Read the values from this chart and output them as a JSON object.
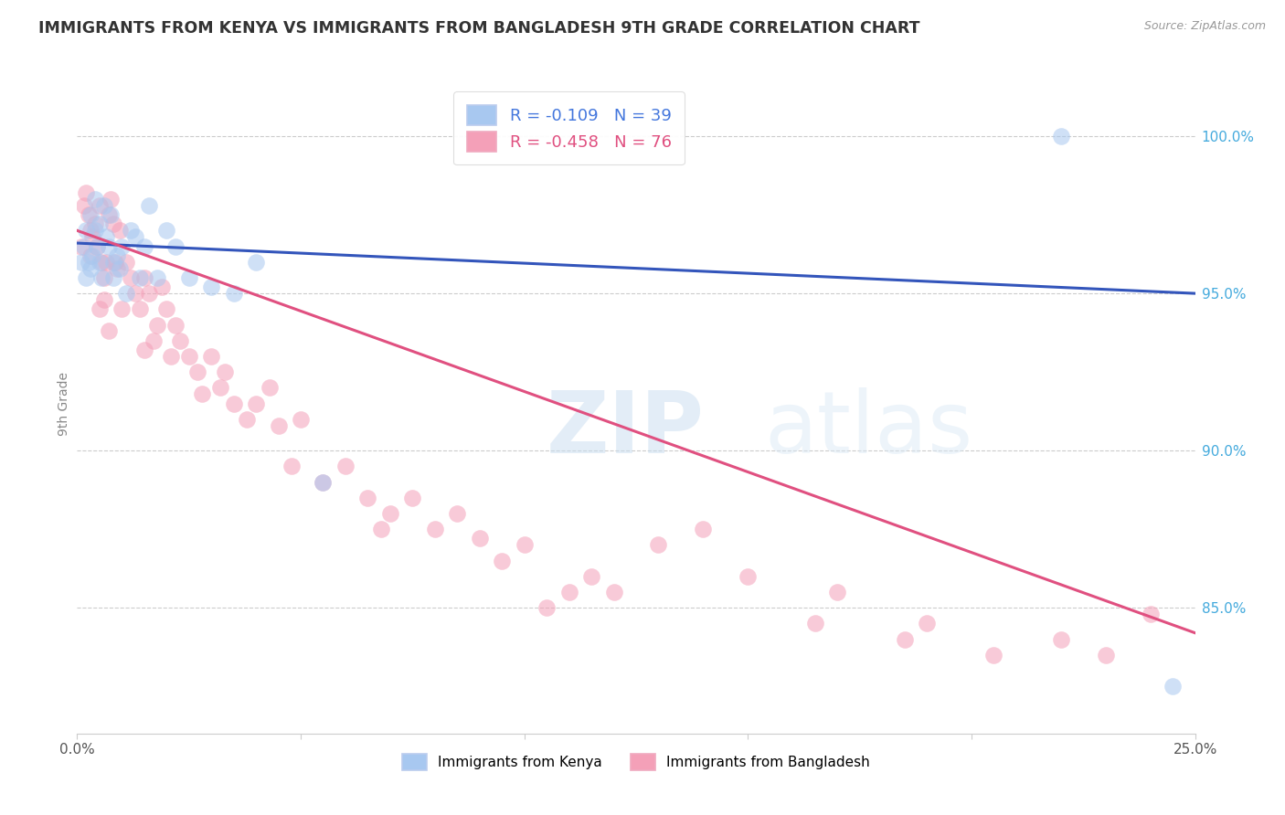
{
  "title": "IMMIGRANTS FROM KENYA VS IMMIGRANTS FROM BANGLADESH 9TH GRADE CORRELATION CHART",
  "source": "Source: ZipAtlas.com",
  "ylabel": "9th Grade",
  "y_ticks": [
    100.0,
    95.0,
    90.0,
    85.0
  ],
  "y_tick_labels": [
    "100.0%",
    "95.0%",
    "90.0%",
    "85.0%"
  ],
  "xlim": [
    0.0,
    25.0
  ],
  "ylim": [
    81.0,
    102.0
  ],
  "kenya_R": -0.109,
  "kenya_N": 39,
  "bangladesh_R": -0.458,
  "bangladesh_N": 76,
  "kenya_color": "#A8C8F0",
  "bangladesh_color": "#F4A0B8",
  "kenya_line_color": "#3355BB",
  "bangladesh_line_color": "#E05080",
  "legend_text_color_kenya": "#4477DD",
  "legend_text_color_bangladesh": "#E05080",
  "watermark_zip": "ZIP",
  "watermark_atlas": "atlas",
  "kenya_line_x0": 0.0,
  "kenya_line_y0": 96.6,
  "kenya_line_x1": 25.0,
  "kenya_line_y1": 95.0,
  "bangladesh_line_x0": 0.0,
  "bangladesh_line_y0": 97.0,
  "bangladesh_line_x1": 25.0,
  "bangladesh_line_y1": 84.2,
  "kenya_x": [
    0.1,
    0.15,
    0.2,
    0.2,
    0.25,
    0.3,
    0.3,
    0.35,
    0.4,
    0.4,
    0.45,
    0.5,
    0.5,
    0.55,
    0.6,
    0.65,
    0.7,
    0.75,
    0.8,
    0.8,
    0.9,
    0.95,
    1.0,
    1.1,
    1.2,
    1.3,
    1.4,
    1.5,
    1.6,
    1.8,
    2.0,
    2.2,
    2.5,
    3.0,
    3.5,
    4.0,
    5.5,
    22.0,
    24.5
  ],
  "kenya_y": [
    96.0,
    96.5,
    97.0,
    95.5,
    96.0,
    97.5,
    95.8,
    96.2,
    98.0,
    97.0,
    96.5,
    97.2,
    96.0,
    95.5,
    97.8,
    96.8,
    96.5,
    97.5,
    96.0,
    95.5,
    96.2,
    95.8,
    96.5,
    95.0,
    97.0,
    96.8,
    95.5,
    96.5,
    97.8,
    95.5,
    97.0,
    96.5,
    95.5,
    95.2,
    95.0,
    96.0,
    89.0,
    100.0,
    82.5
  ],
  "bangladesh_x": [
    0.1,
    0.15,
    0.2,
    0.25,
    0.3,
    0.35,
    0.4,
    0.45,
    0.5,
    0.55,
    0.6,
    0.65,
    0.7,
    0.75,
    0.8,
    0.85,
    0.9,
    0.95,
    1.0,
    1.1,
    1.2,
    1.3,
    1.4,
    1.5,
    1.6,
    1.7,
    1.8,
    1.9,
    2.0,
    2.1,
    2.2,
    2.3,
    2.5,
    2.7,
    3.0,
    3.2,
    3.5,
    3.8,
    4.0,
    4.3,
    4.5,
    5.0,
    5.5,
    6.0,
    6.5,
    7.0,
    7.5,
    8.0,
    8.5,
    9.0,
    9.5,
    10.0,
    10.5,
    11.0,
    11.5,
    12.0,
    13.0,
    14.0,
    15.0,
    16.5,
    17.0,
    18.5,
    19.0,
    20.5,
    22.0,
    23.0,
    24.0,
    0.3,
    0.5,
    0.6,
    0.7,
    1.5,
    2.8,
    3.3,
    4.8,
    6.8
  ],
  "bangladesh_y": [
    96.5,
    97.8,
    98.2,
    97.5,
    97.0,
    96.8,
    97.2,
    96.5,
    97.8,
    96.0,
    95.5,
    96.0,
    97.5,
    98.0,
    97.2,
    96.0,
    95.8,
    97.0,
    94.5,
    96.0,
    95.5,
    95.0,
    94.5,
    95.5,
    95.0,
    93.5,
    94.0,
    95.2,
    94.5,
    93.0,
    94.0,
    93.5,
    93.0,
    92.5,
    93.0,
    92.0,
    91.5,
    91.0,
    91.5,
    92.0,
    90.8,
    91.0,
    89.0,
    89.5,
    88.5,
    88.0,
    88.5,
    87.5,
    88.0,
    87.2,
    86.5,
    87.0,
    85.0,
    85.5,
    86.0,
    85.5,
    87.0,
    87.5,
    86.0,
    84.5,
    85.5,
    84.0,
    84.5,
    83.5,
    84.0,
    83.5,
    84.8,
    96.2,
    94.5,
    94.8,
    93.8,
    93.2,
    91.8,
    92.5,
    89.5,
    87.5
  ]
}
